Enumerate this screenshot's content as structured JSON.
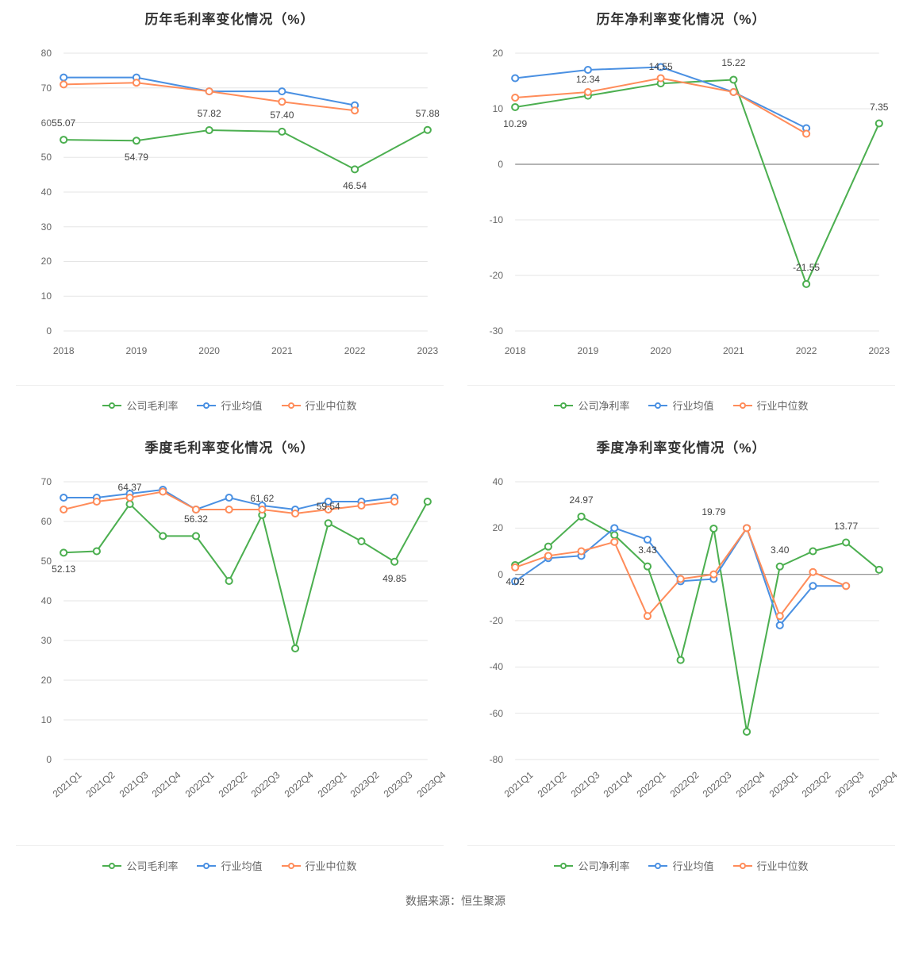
{
  "source_label": "数据来源：恒生聚源",
  "colors": {
    "company": "#4caf50",
    "industry_avg": "#4a90e2",
    "industry_median": "#ff8c5a",
    "grid": "#e5e5e5",
    "axis": "#888888",
    "bg": "#ffffff",
    "title": "#333333",
    "tick": "#666666",
    "label": "#444444"
  },
  "line_width": 2,
  "marker_radius": 4,
  "charts": [
    {
      "id": "annual_gross",
      "title": "历年毛利率变化情况（%）",
      "ylim": [
        0,
        80
      ],
      "ytick_step": 10,
      "categories": [
        "2018",
        "2019",
        "2020",
        "2021",
        "2022",
        "2023"
      ],
      "rotated_x": false,
      "series": [
        {
          "name": "公司毛利率",
          "color_key": "company",
          "values": [
            55.07,
            54.79,
            57.82,
            57.4,
            46.54,
            57.88
          ],
          "labels": [
            "55.07",
            "54.79",
            "57.82",
            "57.40",
            "46.54",
            "57.88"
          ],
          "label_offset_y": [
            -14,
            14,
            -14,
            -14,
            14,
            -14
          ]
        },
        {
          "name": "行业均值",
          "color_key": "industry_avg",
          "values": [
            73,
            73,
            69,
            69,
            65,
            null
          ],
          "labels": [
            null,
            null,
            null,
            null,
            null,
            null
          ]
        },
        {
          "name": "行业中位数",
          "color_key": "industry_median",
          "values": [
            71,
            71.5,
            69,
            66,
            63.5,
            null
          ],
          "labels": [
            null,
            null,
            null,
            null,
            null,
            null
          ]
        }
      ],
      "legend": [
        "公司毛利率",
        "行业均值",
        "行业中位数"
      ]
    },
    {
      "id": "annual_net",
      "title": "历年净利率变化情况（%）",
      "ylim": [
        -30,
        20
      ],
      "ytick_step": 10,
      "categories": [
        "2018",
        "2019",
        "2020",
        "2021",
        "2022",
        "2023"
      ],
      "rotated_x": false,
      "series": [
        {
          "name": "公司净利率",
          "color_key": "company",
          "values": [
            10.29,
            12.34,
            14.55,
            15.22,
            -21.55,
            7.35
          ],
          "labels": [
            "10.29",
            "12.34",
            "14.55",
            "15.22",
            "-21.55",
            "7.35"
          ],
          "label_offset_y": [
            14,
            -14,
            -14,
            -14,
            -14,
            -14
          ]
        },
        {
          "name": "行业均值",
          "color_key": "industry_avg",
          "values": [
            15.5,
            17,
            17.5,
            13,
            6.5,
            null
          ],
          "labels": [
            null,
            null,
            null,
            null,
            null,
            null
          ]
        },
        {
          "name": "行业中位数",
          "color_key": "industry_median",
          "values": [
            12,
            13,
            15.5,
            13,
            5.5,
            null
          ],
          "labels": [
            null,
            null,
            null,
            null,
            null,
            null
          ]
        }
      ],
      "legend": [
        "公司净利率",
        "行业均值",
        "行业中位数"
      ]
    },
    {
      "id": "quarterly_gross",
      "title": "季度毛利率变化情况（%）",
      "ylim": [
        0,
        70
      ],
      "ytick_step": 10,
      "categories": [
        "2021Q1",
        "2021Q2",
        "2021Q3",
        "2021Q4",
        "2022Q1",
        "2022Q2",
        "2022Q3",
        "2022Q4",
        "2023Q1",
        "2023Q2",
        "2023Q3",
        "2023Q4"
      ],
      "rotated_x": true,
      "series": [
        {
          "name": "公司毛利率",
          "color_key": "company",
          "values": [
            52.13,
            52.5,
            64.37,
            56.32,
            56.32,
            45,
            61.62,
            28,
            59.54,
            55,
            49.85,
            65
          ],
          "labels": [
            "52.13",
            null,
            "64.37",
            null,
            "56.32",
            null,
            "61.62",
            null,
            "59.54",
            null,
            "49.85",
            null
          ],
          "label_offset_y": [
            14,
            0,
            -14,
            0,
            -14,
            0,
            -14,
            0,
            -14,
            0,
            14,
            0
          ]
        },
        {
          "name": "行业均值",
          "color_key": "industry_avg",
          "values": [
            66,
            66,
            67,
            68,
            63,
            66,
            64,
            63,
            65,
            65,
            66,
            null
          ],
          "labels": [
            null,
            null,
            null,
            null,
            null,
            null,
            null,
            null,
            null,
            null,
            null,
            null
          ]
        },
        {
          "name": "行业中位数",
          "color_key": "industry_median",
          "values": [
            63,
            65,
            66,
            67.5,
            63,
            63,
            63,
            62,
            63,
            64,
            65,
            null
          ],
          "labels": [
            null,
            null,
            null,
            null,
            null,
            null,
            null,
            null,
            null,
            null,
            null,
            null
          ]
        }
      ],
      "legend": [
        "公司毛利率",
        "行业均值",
        "行业中位数"
      ]
    },
    {
      "id": "quarterly_net",
      "title": "季度净利率变化情况（%）",
      "ylim": [
        -80,
        40
      ],
      "ytick_step": 20,
      "categories": [
        "2021Q1",
        "2021Q2",
        "2021Q3",
        "2021Q4",
        "2022Q1",
        "2022Q2",
        "2022Q3",
        "2022Q4",
        "2023Q1",
        "2023Q2",
        "2023Q3",
        "2023Q4"
      ],
      "rotated_x": true,
      "series": [
        {
          "name": "公司净利率",
          "color_key": "company",
          "values": [
            4.02,
            12,
            24.97,
            17,
            3.43,
            -37,
            19.79,
            -68,
            3.4,
            10,
            13.77,
            2
          ],
          "labels": [
            "4.02",
            null,
            "24.97",
            null,
            "3.43",
            null,
            "19.79",
            null,
            "3.40",
            null,
            "13.77",
            null
          ],
          "label_offset_y": [
            14,
            0,
            -14,
            0,
            -14,
            0,
            -14,
            0,
            -14,
            0,
            -14,
            0
          ]
        },
        {
          "name": "行业均值",
          "color_key": "industry_avg",
          "values": [
            -3,
            7,
            8,
            20,
            15,
            -3,
            -2,
            20,
            -22,
            -5,
            -5,
            null
          ],
          "labels": [
            null,
            null,
            null,
            null,
            null,
            null,
            null,
            null,
            null,
            null,
            null,
            null
          ]
        },
        {
          "name": "行业中位数",
          "color_key": "industry_median",
          "values": [
            3,
            8,
            10,
            14,
            -18,
            -2,
            0,
            20,
            -18,
            1,
            -5,
            null
          ],
          "labels": [
            null,
            null,
            null,
            null,
            null,
            null,
            null,
            null,
            null,
            null,
            null,
            null
          ]
        }
      ],
      "legend": [
        "公司净利率",
        "行业均值",
        "行业中位数"
      ]
    }
  ]
}
